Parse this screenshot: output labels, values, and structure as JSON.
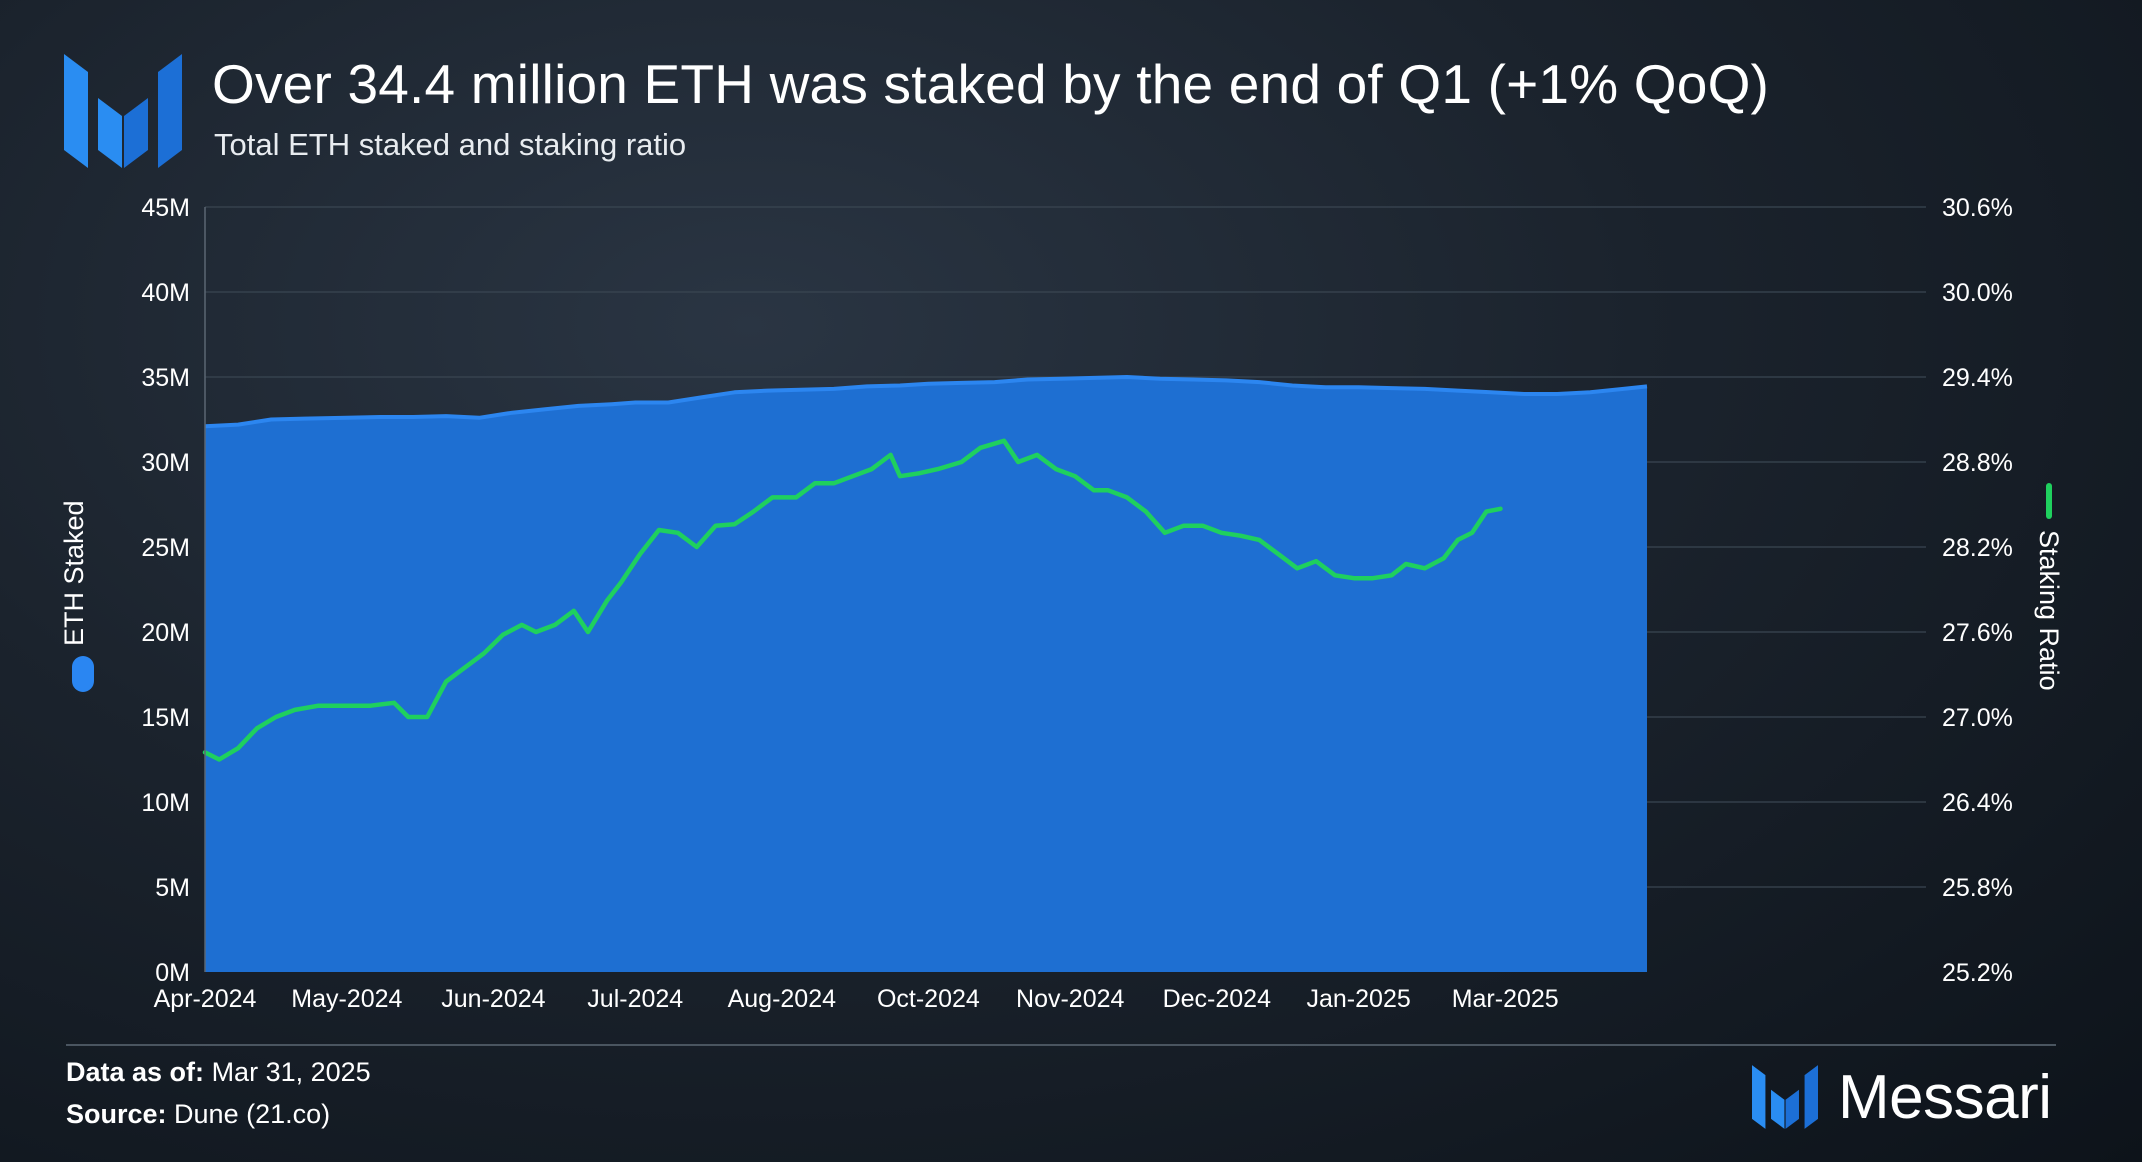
{
  "header": {
    "title": "Over 34.4 million ETH was staked by the end of Q1 (+1% QoQ)",
    "subtitle": "Total ETH staked and staking ratio"
  },
  "footer": {
    "data_as_of_label": "Data as of:",
    "data_as_of_value": "Mar 31, 2025",
    "source_label": "Source:",
    "source_value": "Dune (21.co)",
    "brand": "Messari"
  },
  "colors": {
    "area": "#1e6fd2",
    "area_edge": "#2c86f0",
    "line": "#1fd05e",
    "brand": "#2588ee"
  },
  "chart_data": {
    "type": "area",
    "left_axis": {
      "label": "ETH Staked",
      "min": 0,
      "max": 45000000,
      "ticks": [
        "0M",
        "5M",
        "10M",
        "15M",
        "20M",
        "25M",
        "30M",
        "35M",
        "40M",
        "45M"
      ]
    },
    "right_axis": {
      "label": "Staking Ratio",
      "min": 25.2,
      "max": 30.6,
      "ticks": [
        "25.2%",
        "25.8%",
        "26.4%",
        "27.0%",
        "27.6%",
        "28.2%",
        "28.8%",
        "29.4%",
        "30.0%",
        "30.6%"
      ]
    },
    "x_range": [
      "2024-04-01",
      "2025-03-31"
    ],
    "x_ticks": [
      {
        "label": "Apr-2024",
        "date": "2024-04-01"
      },
      {
        "label": "May-2024",
        "date": "2024-05-01"
      },
      {
        "label": "Jun-2024",
        "date": "2024-06-01"
      },
      {
        "label": "Jul-2024",
        "date": "2024-07-01"
      },
      {
        "label": "Aug-2024",
        "date": "2024-08-01"
      },
      {
        "label": "Oct-2024",
        "date": "2024-09-01"
      },
      {
        "label": "Nov-2024",
        "date": "2024-10-01"
      },
      {
        "label": "Dec-2024",
        "date": "2024-11-01"
      },
      {
        "label": "Jan-2025",
        "date": "2024-12-01"
      },
      {
        "label": "Mar-2025",
        "date": "2025-01-01"
      }
    ],
    "series": [
      {
        "name": "ETH Staked",
        "axis": "left",
        "type": "area",
        "points": [
          [
            "2024-04-01",
            32100000
          ],
          [
            "2024-04-08",
            32200000
          ],
          [
            "2024-04-15",
            32500000
          ],
          [
            "2024-04-22",
            32550000
          ],
          [
            "2024-05-01",
            32600000
          ],
          [
            "2024-05-08",
            32650000
          ],
          [
            "2024-05-15",
            32650000
          ],
          [
            "2024-05-22",
            32700000
          ],
          [
            "2024-05-29",
            32600000
          ],
          [
            "2024-06-05",
            32900000
          ],
          [
            "2024-06-12",
            33100000
          ],
          [
            "2024-06-19",
            33300000
          ],
          [
            "2024-06-26",
            33400000
          ],
          [
            "2024-07-01",
            33500000
          ],
          [
            "2024-07-08",
            33500000
          ],
          [
            "2024-07-15",
            33800000
          ],
          [
            "2024-07-22",
            34100000
          ],
          [
            "2024-07-29",
            34200000
          ],
          [
            "2024-08-05",
            34250000
          ],
          [
            "2024-08-12",
            34300000
          ],
          [
            "2024-08-19",
            34450000
          ],
          [
            "2024-08-26",
            34500000
          ],
          [
            "2024-09-01",
            34600000
          ],
          [
            "2024-09-08",
            34650000
          ],
          [
            "2024-09-15",
            34700000
          ],
          [
            "2024-09-22",
            34850000
          ],
          [
            "2024-09-29",
            34900000
          ],
          [
            "2024-10-06",
            34950000
          ],
          [
            "2024-10-13",
            35000000
          ],
          [
            "2024-10-20",
            34900000
          ],
          [
            "2024-10-27",
            34850000
          ],
          [
            "2024-11-03",
            34800000
          ],
          [
            "2024-11-10",
            34700000
          ],
          [
            "2024-11-17",
            34500000
          ],
          [
            "2024-11-24",
            34400000
          ],
          [
            "2024-12-01",
            34400000
          ],
          [
            "2024-12-08",
            34350000
          ],
          [
            "2024-12-15",
            34300000
          ],
          [
            "2024-12-22",
            34200000
          ],
          [
            "2024-12-29",
            34100000
          ],
          [
            "2025-01-05",
            34000000
          ],
          [
            "2025-01-12",
            34000000
          ],
          [
            "2025-01-19",
            34100000
          ],
          [
            "2025-01-26",
            34300000
          ],
          [
            "2025-01-31",
            34450000
          ]
        ]
      },
      {
        "name": "Staking Ratio",
        "axis": "right",
        "type": "line",
        "points": [
          [
            "2024-04-01",
            26.75
          ],
          [
            "2024-04-04",
            26.7
          ],
          [
            "2024-04-08",
            26.78
          ],
          [
            "2024-04-12",
            26.92
          ],
          [
            "2024-04-16",
            27.0
          ],
          [
            "2024-04-20",
            27.05
          ],
          [
            "2024-04-25",
            27.08
          ],
          [
            "2024-05-01",
            27.08
          ],
          [
            "2024-05-06",
            27.08
          ],
          [
            "2024-05-11",
            27.1
          ],
          [
            "2024-05-14",
            27.0
          ],
          [
            "2024-05-18",
            27.0
          ],
          [
            "2024-05-22",
            27.25
          ],
          [
            "2024-05-26",
            27.35
          ],
          [
            "2024-05-30",
            27.45
          ],
          [
            "2024-06-03",
            27.58
          ],
          [
            "2024-06-07",
            27.65
          ],
          [
            "2024-06-10",
            27.6
          ],
          [
            "2024-06-14",
            27.65
          ],
          [
            "2024-06-18",
            27.75
          ],
          [
            "2024-06-21",
            27.6
          ],
          [
            "2024-06-25",
            27.82
          ],
          [
            "2024-06-28",
            27.95
          ],
          [
            "2024-07-02",
            28.15
          ],
          [
            "2024-07-06",
            28.32
          ],
          [
            "2024-07-10",
            28.3
          ],
          [
            "2024-07-14",
            28.2
          ],
          [
            "2024-07-18",
            28.35
          ],
          [
            "2024-07-22",
            28.36
          ],
          [
            "2024-07-26",
            28.45
          ],
          [
            "2024-07-30",
            28.55
          ],
          [
            "2024-08-04",
            28.55
          ],
          [
            "2024-08-08",
            28.65
          ],
          [
            "2024-08-12",
            28.65
          ],
          [
            "2024-08-16",
            28.7
          ],
          [
            "2024-08-20",
            28.75
          ],
          [
            "2024-08-24",
            28.85
          ],
          [
            "2024-08-26",
            28.7
          ],
          [
            "2024-08-30",
            28.72
          ],
          [
            "2024-09-03",
            28.75
          ],
          [
            "2024-09-08",
            28.8
          ],
          [
            "2024-09-12",
            28.9
          ],
          [
            "2024-09-17",
            28.95
          ],
          [
            "2024-09-20",
            28.8
          ],
          [
            "2024-09-24",
            28.85
          ],
          [
            "2024-09-28",
            28.75
          ],
          [
            "2024-10-02",
            28.7
          ],
          [
            "2024-10-06",
            28.6
          ],
          [
            "2024-10-09",
            28.6
          ],
          [
            "2024-10-13",
            28.55
          ],
          [
            "2024-10-17",
            28.45
          ],
          [
            "2024-10-21",
            28.3
          ],
          [
            "2024-10-25",
            28.35
          ],
          [
            "2024-10-29",
            28.35
          ],
          [
            "2024-11-02",
            28.3
          ],
          [
            "2024-11-06",
            28.28
          ],
          [
            "2024-11-10",
            28.25
          ],
          [
            "2024-11-14",
            28.15
          ],
          [
            "2024-11-18",
            28.05
          ],
          [
            "2024-11-22",
            28.1
          ],
          [
            "2024-11-26",
            28.0
          ],
          [
            "2024-11-30",
            27.98
          ],
          [
            "2024-12-04",
            27.98
          ],
          [
            "2024-12-08",
            28.0
          ],
          [
            "2024-12-11",
            28.08
          ],
          [
            "2024-12-15",
            28.05
          ],
          [
            "2024-12-19",
            28.12
          ],
          [
            "2024-12-22",
            28.25
          ],
          [
            "2024-12-25",
            28.3
          ],
          [
            "2024-12-28",
            28.45
          ],
          [
            "2024-12-31",
            28.47
          ]
        ]
      }
    ]
  }
}
